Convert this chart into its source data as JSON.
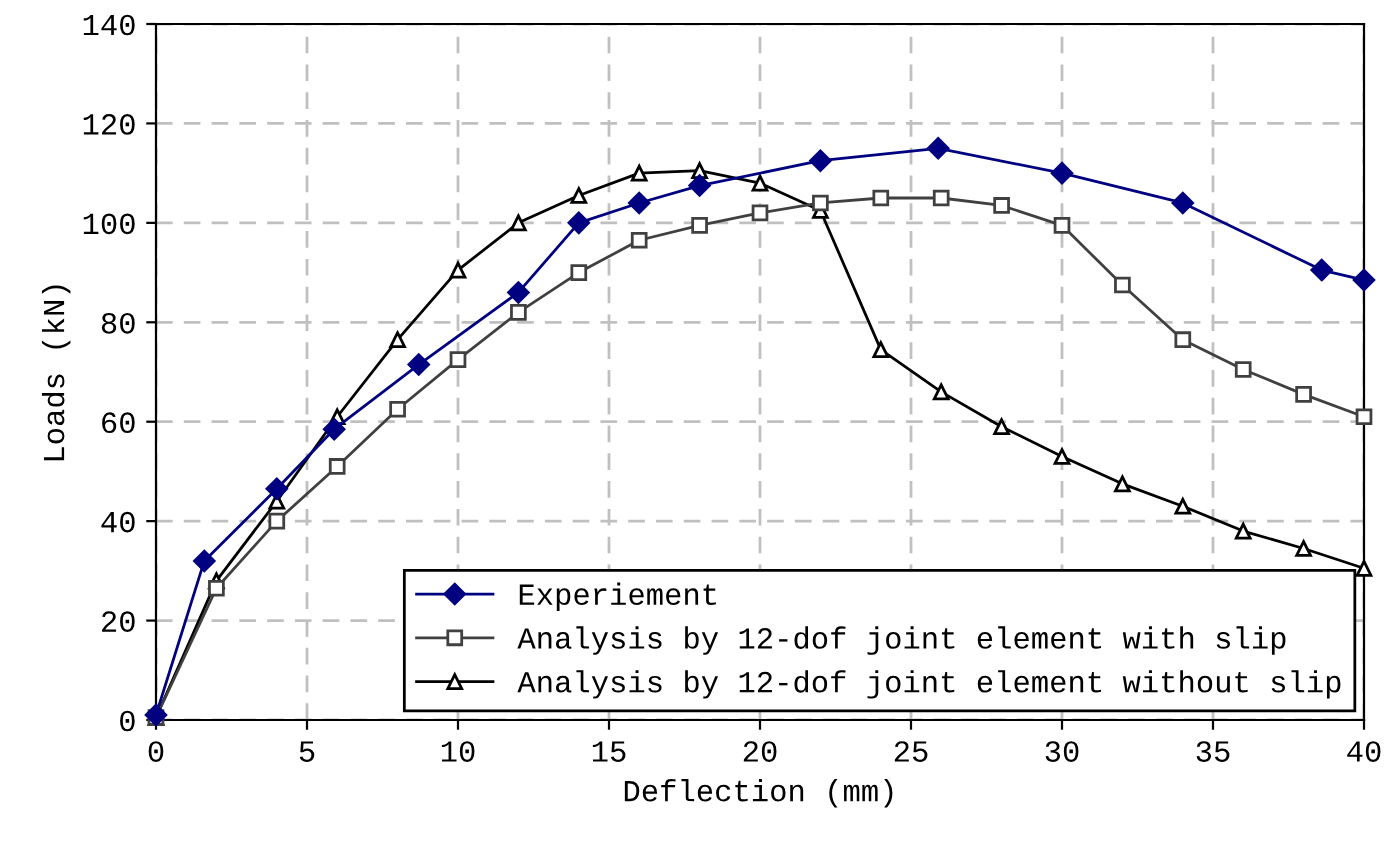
{
  "chart_data": {
    "type": "line",
    "xlabel": "Deflection (mm)",
    "ylabel": "Loads (kN)",
    "xlim": [
      0,
      40
    ],
    "xticks": [
      0,
      5,
      10,
      15,
      20,
      25,
      30,
      35,
      40
    ],
    "ylim": [
      0,
      140
    ],
    "yticks": [
      0,
      20,
      40,
      60,
      80,
      100,
      120,
      140
    ],
    "grid": true,
    "legend": "bottom right",
    "line_style": "solid",
    "series": [
      {
        "name": "Experiement",
        "color": "#000080",
        "marker": "diamond",
        "x": [
          0,
          1.6,
          4,
          5.9,
          8.7,
          12,
          14,
          16,
          18,
          22,
          25.9,
          30,
          34,
          38.6,
          40
        ],
        "values": [
          1,
          32,
          46.5,
          58.5,
          71.5,
          86,
          100,
          104,
          107.5,
          112.5,
          115,
          110,
          104,
          90.5,
          88.5
        ]
      },
      {
        "name": "Analysis by 12-dof joint element with slip",
        "color": "#404040",
        "marker": "square",
        "x": [
          0,
          2,
          4,
          6,
          8,
          10,
          12,
          14,
          16,
          18,
          20,
          22,
          24,
          26,
          28,
          30,
          32,
          34,
          36,
          38,
          40
        ],
        "values": [
          0.5,
          26.5,
          40,
          51,
          62.5,
          72.5,
          82,
          90,
          96.5,
          99.5,
          102,
          104,
          105,
          105,
          103.5,
          99.5,
          87.5,
          76.5,
          70.5,
          65.5,
          61
        ]
      },
      {
        "name": "Analysis by 12-dof joint element without slip",
        "color": "#000000",
        "marker": "triangle",
        "x": [
          0,
          2,
          4,
          6,
          8,
          10,
          12,
          14,
          16,
          18,
          20,
          22,
          24,
          26,
          28,
          30,
          32,
          34,
          36,
          38,
          40
        ],
        "values": [
          0.5,
          28,
          44,
          61,
          76.5,
          90.5,
          100,
          105.5,
          110,
          110.5,
          108,
          102.5,
          74.5,
          66,
          59,
          53,
          47.5,
          43,
          38,
          34.5,
          30.5
        ]
      }
    ]
  }
}
